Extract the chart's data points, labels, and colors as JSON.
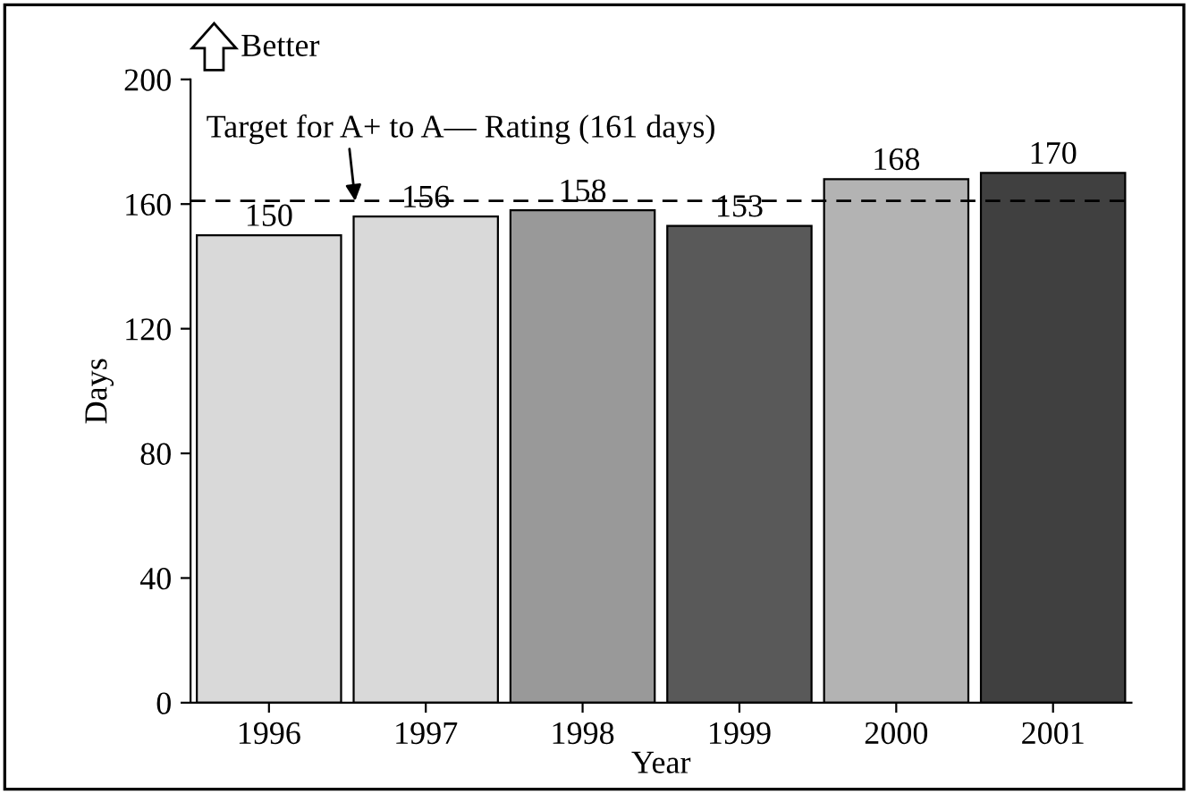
{
  "chart_data": {
    "type": "bar",
    "xlabel": "Year",
    "ylabel": "Days",
    "categories": [
      "1996",
      "1997",
      "1998",
      "1999",
      "2000",
      "2001"
    ],
    "values": [
      150,
      156,
      158,
      153,
      168,
      170
    ],
    "colors": [
      "#d9d9d9",
      "#d9d9d9",
      "#999999",
      "#595959",
      "#b3b3b3",
      "#404040"
    ],
    "ylim": [
      0,
      200
    ],
    "yticks": [
      0,
      40,
      80,
      120,
      160,
      200
    ],
    "grid": false,
    "data_labels": true,
    "ref_lines": [
      {
        "axis": "y",
        "value": 161,
        "label": "Target for A+ to A— Rating (161 days)",
        "color": "#000000",
        "line_style": "dashed"
      }
    ],
    "annotations": [
      "Better"
    ]
  }
}
